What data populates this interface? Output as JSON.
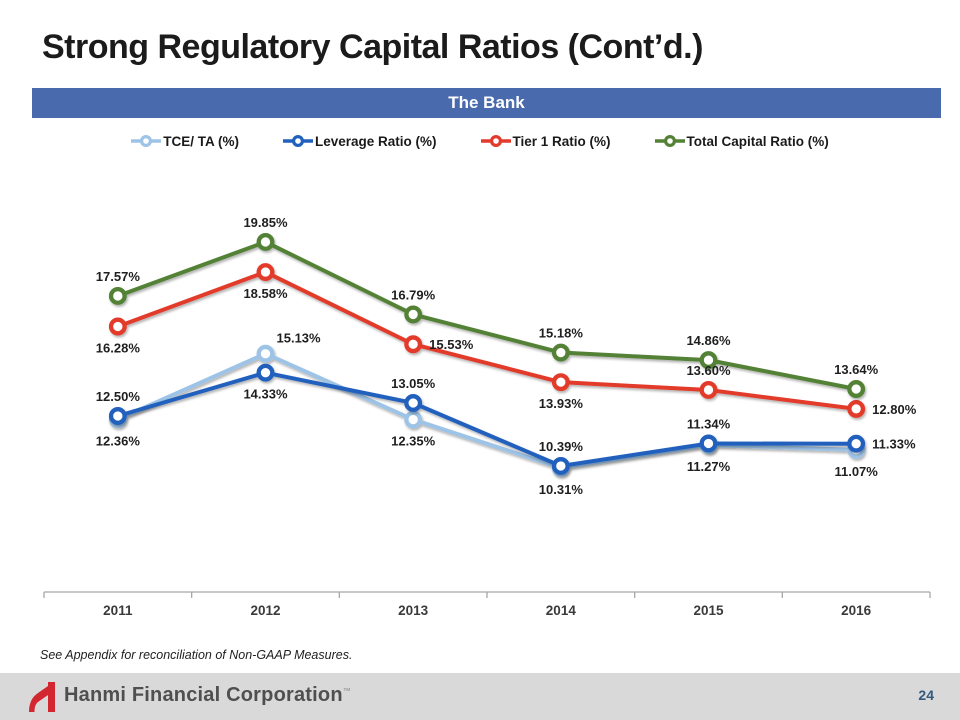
{
  "slide": {
    "title": "Strong Regulatory Capital Ratios (Cont’d.)",
    "banner": "The Bank",
    "footnote": "See Appendix for reconciliation of Non-GAAP Measures.",
    "footer": {
      "brand": "Hanmi Financial Corporation",
      "trademark": "™",
      "page_number": "24",
      "logo_color": "#d22630",
      "band_color": "#d9d9d9"
    }
  },
  "chart_data": {
    "type": "line",
    "title": "The Bank",
    "categories": [
      "2011",
      "2012",
      "2013",
      "2014",
      "2015",
      "2016"
    ],
    "series": [
      {
        "name": "TCE/ TA (%)",
        "color": "#9dc3e6",
        "values": [
          12.36,
          15.13,
          12.35,
          10.31,
          11.27,
          11.07
        ],
        "label_positions": [
          "below",
          "above-right",
          "below",
          "below",
          "below",
          "below"
        ]
      },
      {
        "name": "Leverage Ratio (%)",
        "color": "#2160bd",
        "values": [
          12.5,
          14.33,
          13.05,
          10.39,
          11.34,
          11.33
        ],
        "label_positions": [
          "above",
          "below",
          "above",
          "above",
          "above",
          "right"
        ]
      },
      {
        "name": "Tier 1 Ratio (%)",
        "color": "#e23a2c",
        "values": [
          16.28,
          18.58,
          15.53,
          13.93,
          13.6,
          12.8
        ],
        "label_positions": [
          "below",
          "below",
          "right",
          "below",
          "above",
          "right"
        ]
      },
      {
        "name": "Total Capital Ratio (%)",
        "color": "#538135",
        "values": [
          17.57,
          19.85,
          16.79,
          15.18,
          14.86,
          13.64
        ],
        "label_positions": [
          "above",
          "above",
          "above",
          "above",
          "above",
          "above"
        ]
      }
    ],
    "value_format": "percent_2dp",
    "data_labels": true,
    "legend_position": "top",
    "grid": false,
    "y_axis_visible": false,
    "x_axis_color": "#a6a6a6",
    "label_text_color": "#1f1f1f",
    "ylim": [
      9.5,
      21
    ]
  }
}
